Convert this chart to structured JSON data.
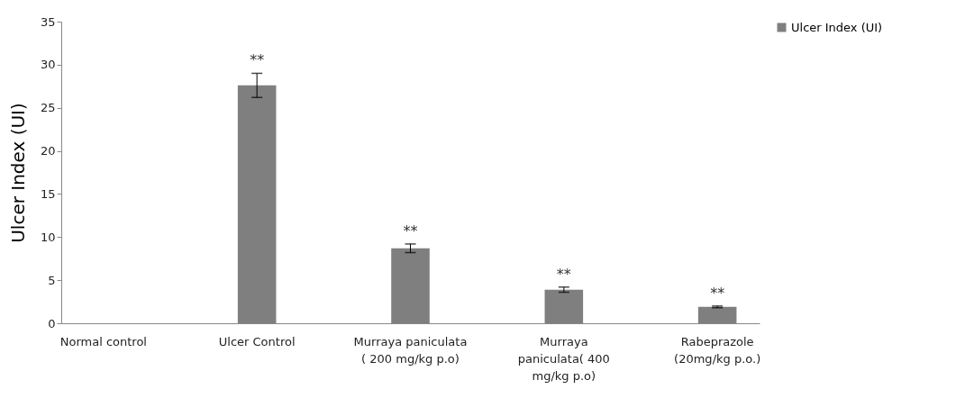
{
  "chart_data": {
    "type": "bar",
    "ylabel": "Ulcer Index (UI)",
    "categories": [
      "Normal control",
      "Ulcer Control",
      "Murraya paniculata ( 200 mg/kg p.o)",
      "Murraya paniculata( 400 mg/kg p.o)",
      "Rabeprazole (20mg/kg p.o.)"
    ],
    "series": [
      {
        "name": "Ulcer Index (UI)",
        "color": "#7f7f7f",
        "values": [
          0,
          27.6,
          8.7,
          3.9,
          1.9
        ],
        "errors": [
          null,
          1.4,
          0.5,
          0.3,
          0.1
        ]
      }
    ],
    "ylim": [
      0,
      35
    ],
    "yticks": [
      0,
      5,
      10,
      15,
      20,
      25,
      30,
      35
    ],
    "grid": false,
    "legend": "right",
    "annotations": [
      {
        "text": "**",
        "x": "Ulcer Control",
        "y": 29
      },
      {
        "text": "**",
        "x": "Murraya paniculata ( 200 mg/kg p.o)",
        "y": 9.2
      },
      {
        "text": "**",
        "x": "Murraya paniculata( 400 mg/kg p.o)",
        "y": 4.2
      },
      {
        "text": "**",
        "x": "Rabeprazole (20mg/kg p.o.)",
        "y": 2
      }
    ]
  }
}
